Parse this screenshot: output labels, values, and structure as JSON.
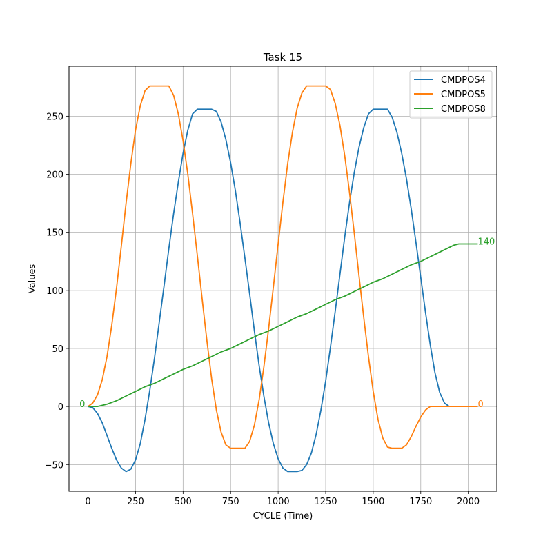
{
  "chart_data": {
    "type": "line",
    "title": "Task 15",
    "xlabel": "CYCLE (Time)",
    "ylabel": "Values",
    "xlim": [
      -100,
      2150
    ],
    "ylim": [
      -73,
      293
    ],
    "xticks": [
      0,
      250,
      500,
      750,
      1000,
      1250,
      1500,
      1750,
      2000
    ],
    "yticks": [
      -50,
      0,
      50,
      100,
      150,
      200,
      250
    ],
    "ytick_labels": [
      "−50",
      "0",
      "50",
      "100",
      "150",
      "200",
      "250"
    ],
    "grid": true,
    "legend_position": "top-right",
    "series": [
      {
        "name": "CMDPOS4",
        "color": "#1f77b4",
        "points": [
          [
            0,
            0
          ],
          [
            25,
            -1
          ],
          [
            50,
            -6
          ],
          [
            75,
            -14
          ],
          [
            100,
            -25
          ],
          [
            125,
            -36
          ],
          [
            150,
            -46
          ],
          [
            175,
            -53
          ],
          [
            200,
            -56
          ],
          [
            225,
            -54
          ],
          [
            250,
            -46
          ],
          [
            275,
            -32
          ],
          [
            300,
            -11
          ],
          [
            325,
            14
          ],
          [
            350,
            42
          ],
          [
            375,
            73
          ],
          [
            400,
            104
          ],
          [
            425,
            136
          ],
          [
            450,
            166
          ],
          [
            475,
            193
          ],
          [
            500,
            218
          ],
          [
            525,
            238
          ],
          [
            550,
            252
          ],
          [
            575,
            256
          ],
          [
            600,
            256
          ],
          [
            625,
            256
          ],
          [
            650,
            256
          ],
          [
            675,
            254
          ],
          [
            700,
            245
          ],
          [
            725,
            230
          ],
          [
            750,
            210
          ],
          [
            775,
            186
          ],
          [
            800,
            158
          ],
          [
            825,
            128
          ],
          [
            850,
            97
          ],
          [
            875,
            65
          ],
          [
            900,
            35
          ],
          [
            925,
            9
          ],
          [
            950,
            -14
          ],
          [
            975,
            -32
          ],
          [
            1000,
            -45
          ],
          [
            1025,
            -53
          ],
          [
            1050,
            -56
          ],
          [
            1075,
            -56
          ],
          [
            1100,
            -56
          ],
          [
            1125,
            -55
          ],
          [
            1150,
            -50
          ],
          [
            1175,
            -40
          ],
          [
            1200,
            -24
          ],
          [
            1225,
            -3
          ],
          [
            1250,
            22
          ],
          [
            1275,
            51
          ],
          [
            1300,
            82
          ],
          [
            1325,
            114
          ],
          [
            1350,
            146
          ],
          [
            1375,
            175
          ],
          [
            1400,
            201
          ],
          [
            1425,
            223
          ],
          [
            1450,
            240
          ],
          [
            1475,
            252
          ],
          [
            1500,
            256
          ],
          [
            1525,
            256
          ],
          [
            1550,
            256
          ],
          [
            1575,
            256
          ],
          [
            1600,
            249
          ],
          [
            1625,
            236
          ],
          [
            1650,
            218
          ],
          [
            1675,
            196
          ],
          [
            1700,
            170
          ],
          [
            1725,
            141
          ],
          [
            1750,
            111
          ],
          [
            1775,
            81
          ],
          [
            1800,
            53
          ],
          [
            1825,
            29
          ],
          [
            1850,
            12
          ],
          [
            1875,
            3
          ],
          [
            1900,
            0
          ],
          [
            1925,
            0
          ],
          [
            1950,
            0
          ],
          [
            1975,
            0
          ],
          [
            2000,
            0
          ],
          [
            2025,
            0
          ],
          [
            2050,
            0
          ]
        ]
      },
      {
        "name": "CMDPOS5",
        "color": "#ff7f0e",
        "points": [
          [
            0,
            0
          ],
          [
            25,
            3
          ],
          [
            50,
            10
          ],
          [
            75,
            23
          ],
          [
            100,
            43
          ],
          [
            125,
            70
          ],
          [
            150,
            102
          ],
          [
            175,
            138
          ],
          [
            200,
            175
          ],
          [
            225,
            209
          ],
          [
            250,
            238
          ],
          [
            275,
            259
          ],
          [
            300,
            272
          ],
          [
            325,
            276
          ],
          [
            350,
            276
          ],
          [
            375,
            276
          ],
          [
            400,
            276
          ],
          [
            425,
            276
          ],
          [
            450,
            268
          ],
          [
            475,
            252
          ],
          [
            500,
            229
          ],
          [
            525,
            200
          ],
          [
            550,
            166
          ],
          [
            575,
            130
          ],
          [
            600,
            93
          ],
          [
            625,
            57
          ],
          [
            650,
            24
          ],
          [
            675,
            -3
          ],
          [
            700,
            -22
          ],
          [
            725,
            -33
          ],
          [
            750,
            -36
          ],
          [
            775,
            -36
          ],
          [
            800,
            -36
          ],
          [
            825,
            -36
          ],
          [
            850,
            -30
          ],
          [
            875,
            -16
          ],
          [
            900,
            6
          ],
          [
            925,
            34
          ],
          [
            950,
            67
          ],
          [
            975,
            103
          ],
          [
            1000,
            140
          ],
          [
            1025,
            176
          ],
          [
            1050,
            209
          ],
          [
            1075,
            236
          ],
          [
            1100,
            257
          ],
          [
            1125,
            270
          ],
          [
            1150,
            276
          ],
          [
            1175,
            276
          ],
          [
            1200,
            276
          ],
          [
            1225,
            276
          ],
          [
            1250,
            276
          ],
          [
            1275,
            273
          ],
          [
            1300,
            261
          ],
          [
            1325,
            242
          ],
          [
            1350,
            216
          ],
          [
            1375,
            185
          ],
          [
            1400,
            150
          ],
          [
            1425,
            113
          ],
          [
            1450,
            77
          ],
          [
            1475,
            43
          ],
          [
            1500,
            13
          ],
          [
            1525,
            -11
          ],
          [
            1550,
            -27
          ],
          [
            1575,
            -35
          ],
          [
            1600,
            -36
          ],
          [
            1625,
            -36
          ],
          [
            1650,
            -36
          ],
          [
            1675,
            -33
          ],
          [
            1700,
            -26
          ],
          [
            1725,
            -17
          ],
          [
            1750,
            -9
          ],
          [
            1775,
            -3
          ],
          [
            1800,
            0
          ],
          [
            1825,
            0
          ],
          [
            1850,
            0
          ],
          [
            1875,
            0
          ],
          [
            1900,
            0
          ],
          [
            1925,
            0
          ],
          [
            1950,
            0
          ],
          [
            1975,
            0
          ],
          [
            2000,
            0
          ],
          [
            2025,
            0
          ],
          [
            2050,
            0
          ]
        ]
      },
      {
        "name": "CMDPOS8",
        "color": "#2ca02c",
        "points": [
          [
            0,
            0
          ],
          [
            50,
            0
          ],
          [
            100,
            2
          ],
          [
            150,
            5
          ],
          [
            200,
            9
          ],
          [
            250,
            13
          ],
          [
            300,
            17
          ],
          [
            350,
            20
          ],
          [
            400,
            24
          ],
          [
            450,
            28
          ],
          [
            500,
            32
          ],
          [
            550,
            35
          ],
          [
            600,
            39
          ],
          [
            650,
            43
          ],
          [
            700,
            47
          ],
          [
            750,
            50
          ],
          [
            800,
            54
          ],
          [
            850,
            58
          ],
          [
            900,
            62
          ],
          [
            950,
            65
          ],
          [
            1000,
            69
          ],
          [
            1050,
            73
          ],
          [
            1100,
            77
          ],
          [
            1150,
            80
          ],
          [
            1200,
            84
          ],
          [
            1250,
            88
          ],
          [
            1300,
            92
          ],
          [
            1350,
            95
          ],
          [
            1400,
            99
          ],
          [
            1450,
            103
          ],
          [
            1500,
            107
          ],
          [
            1550,
            110
          ],
          [
            1600,
            114
          ],
          [
            1650,
            118
          ],
          [
            1700,
            122
          ],
          [
            1750,
            125
          ],
          [
            1800,
            129
          ],
          [
            1850,
            133
          ],
          [
            1900,
            137
          ],
          [
            1925,
            139
          ],
          [
            1950,
            140
          ],
          [
            2000,
            140
          ],
          [
            2050,
            140
          ]
        ]
      }
    ],
    "annotations": [
      {
        "text": "0",
        "x": -15,
        "y": 0,
        "color": "#2ca02c",
        "anchor": "end"
      },
      {
        "text": "140",
        "x": 2050,
        "y": 140,
        "color": "#2ca02c",
        "anchor": "start"
      },
      {
        "text": "0",
        "x": 2050,
        "y": 0,
        "color": "#ff7f0e",
        "anchor": "start"
      }
    ]
  }
}
